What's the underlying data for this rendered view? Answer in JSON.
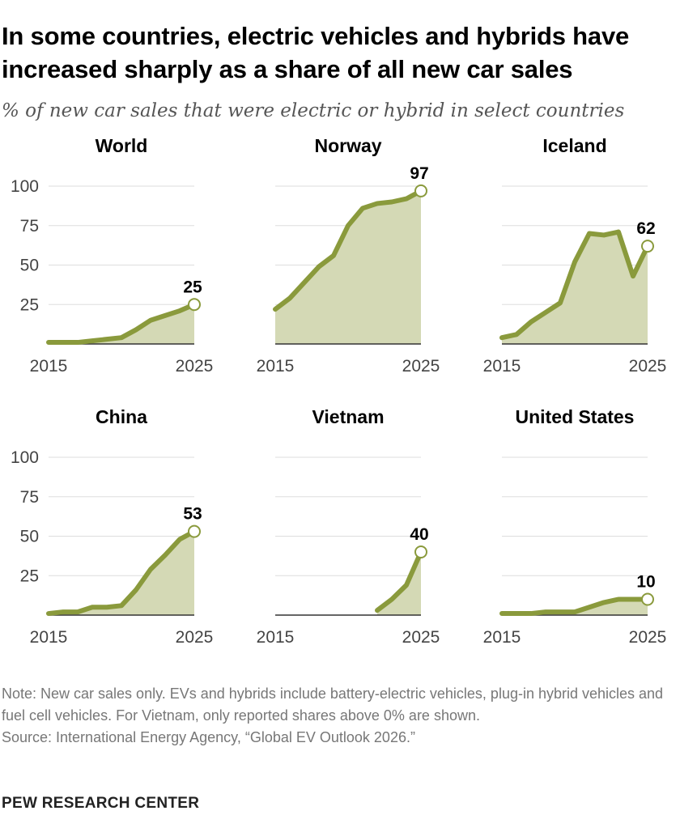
{
  "title": "In some countries, electric vehicles and hybrids have increased sharply as a share of all new car sales",
  "subtitle": "% of new car sales that were electric or hybrid in select countries",
  "note": "Note: New car sales only. EVs and hybrids include battery-electric vehicles, plug-in hybrid vehicles and fuel cell vehicles. For Vietnam, only reported shares above 0% are shown.",
  "source": "Source: International Energy Agency, “Global EV Outlook 2026.”",
  "brand": "PEW RESEARCH CENTER",
  "colors": {
    "line": "#8a9a3c",
    "area": "#d4d9b5",
    "grid": "#dddddd",
    "axis": "#333333"
  },
  "chart_data": [
    {
      "type": "area",
      "title": "World",
      "x": [
        2015,
        2016,
        2017,
        2018,
        2019,
        2020,
        2021,
        2022,
        2023,
        2024,
        2025
      ],
      "values": [
        1,
        1,
        1,
        2,
        3,
        4,
        9,
        15,
        18,
        21,
        25
      ],
      "end_label": "25",
      "x_ticks": [
        "2015",
        "2025"
      ],
      "y_ticks": [
        "25",
        "50",
        "75",
        "100"
      ],
      "ylim": [
        0,
        100
      ]
    },
    {
      "type": "area",
      "title": "Norway",
      "x": [
        2015,
        2016,
        2017,
        2018,
        2019,
        2020,
        2021,
        2022,
        2023,
        2024,
        2025
      ],
      "values": [
        22,
        29,
        39,
        49,
        56,
        75,
        86,
        89,
        90,
        92,
        97
      ],
      "end_label": "97",
      "x_ticks": [
        "2015",
        "2025"
      ],
      "ylim": [
        0,
        100
      ]
    },
    {
      "type": "area",
      "title": "Iceland",
      "x": [
        2015,
        2016,
        2017,
        2018,
        2019,
        2020,
        2021,
        2022,
        2023,
        2024,
        2025
      ],
      "values": [
        4,
        6,
        14,
        20,
        26,
        52,
        70,
        69,
        71,
        43,
        62
      ],
      "end_label": "62",
      "x_ticks": [
        "2015",
        "2025"
      ],
      "ylim": [
        0,
        100
      ]
    },
    {
      "type": "area",
      "title": "China",
      "x": [
        2015,
        2016,
        2017,
        2018,
        2019,
        2020,
        2021,
        2022,
        2023,
        2024,
        2025
      ],
      "values": [
        1,
        2,
        2,
        5,
        5,
        6,
        16,
        29,
        38,
        48,
        53
      ],
      "end_label": "53",
      "x_ticks": [
        "2015",
        "2025"
      ],
      "y_ticks": [
        "25",
        "50",
        "75",
        "100"
      ],
      "ylim": [
        0,
        100
      ]
    },
    {
      "type": "area",
      "title": "Vietnam",
      "x": [
        2022,
        2023,
        2024,
        2025
      ],
      "values": [
        3,
        10,
        19,
        40
      ],
      "end_label": "40",
      "x_ticks": [
        "2015",
        "2025"
      ],
      "ylim": [
        0,
        100
      ]
    },
    {
      "type": "area",
      "title": "United States",
      "x": [
        2015,
        2016,
        2017,
        2018,
        2019,
        2020,
        2021,
        2022,
        2023,
        2024,
        2025
      ],
      "values": [
        1,
        1,
        1,
        2,
        2,
        2,
        5,
        8,
        10,
        10,
        10
      ],
      "end_label": "10",
      "x_ticks": [
        "2015",
        "2025"
      ],
      "ylim": [
        0,
        100
      ]
    }
  ]
}
